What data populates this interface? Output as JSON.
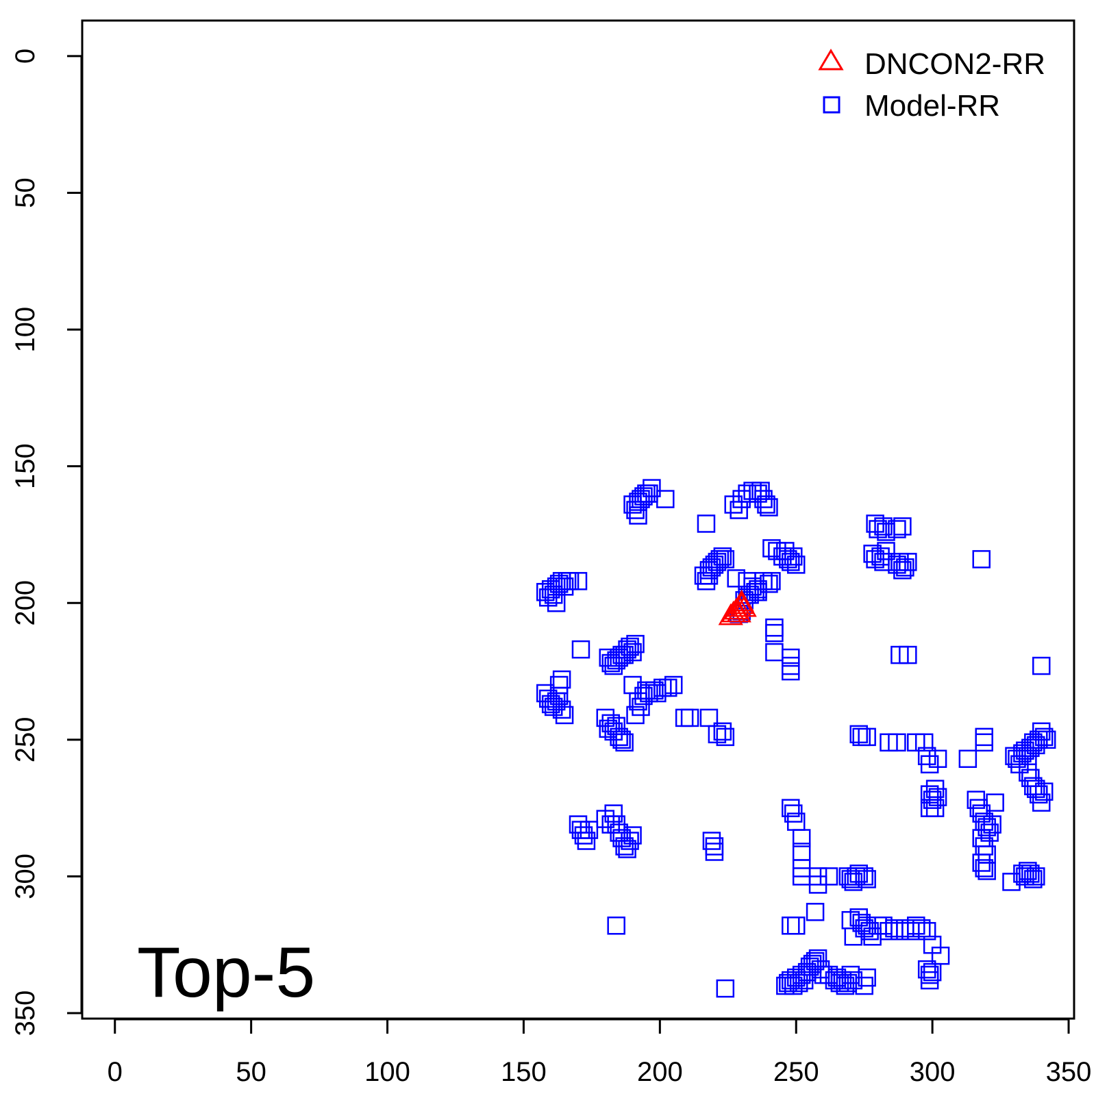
{
  "chart_data": {
    "type": "scatter",
    "title": "",
    "xlabel": "",
    "ylabel": "",
    "xlim": [
      -12,
      352
    ],
    "ylim": [
      -13,
      352
    ],
    "y_inverted": true,
    "x_ticks": [
      0,
      50,
      100,
      150,
      200,
      250,
      300,
      350
    ],
    "y_ticks": [
      0,
      50,
      100,
      150,
      200,
      250,
      300,
      350
    ],
    "x_tick_labels": [
      "0",
      "50",
      "100",
      "150",
      "200",
      "250",
      "300",
      "350"
    ],
    "y_tick_labels": [
      "0",
      "50",
      "100",
      "150",
      "200",
      "250",
      "300",
      "350"
    ],
    "annotation": "Top-5",
    "legend_position": "top-right",
    "series": [
      {
        "name": "DNCON2-RR",
        "marker": "triangle",
        "color": "#ff0000",
        "points": [
          [
            226,
            205
          ],
          [
            227,
            204
          ],
          [
            228,
            203
          ],
          [
            229,
            202
          ],
          [
            230,
            201
          ],
          [
            230,
            200
          ],
          [
            231,
            202
          ],
          [
            229,
            204
          ]
        ]
      },
      {
        "name": "Model-RR",
        "marker": "square",
        "color": "#0000ff",
        "points": [
          [
            158,
            196
          ],
          [
            159,
            198
          ],
          [
            160,
            195
          ],
          [
            161,
            197
          ],
          [
            162,
            194
          ],
          [
            163,
            193
          ],
          [
            164,
            192
          ],
          [
            165,
            194
          ],
          [
            166,
            192
          ],
          [
            167,
            192
          ],
          [
            170,
            192
          ],
          [
            162,
            200
          ],
          [
            190,
            164
          ],
          [
            191,
            166
          ],
          [
            192,
            168
          ],
          [
            192,
            163
          ],
          [
            193,
            162
          ],
          [
            194,
            161
          ],
          [
            195,
            160
          ],
          [
            196,
            160
          ],
          [
            197,
            158
          ],
          [
            202,
            162
          ],
          [
            227,
            164
          ],
          [
            230,
            162
          ],
          [
            232,
            160
          ],
          [
            234,
            159
          ],
          [
            236,
            160
          ],
          [
            237,
            159
          ],
          [
            238,
            162
          ],
          [
            239,
            164
          ],
          [
            240,
            165
          ],
          [
            229,
            166
          ],
          [
            217,
            171
          ],
          [
            279,
            171
          ],
          [
            280,
            173
          ],
          [
            282,
            172
          ],
          [
            283,
            174
          ],
          [
            287,
            173
          ],
          [
            289,
            172
          ],
          [
            216,
            190
          ],
          [
            217,
            192
          ],
          [
            218,
            190
          ],
          [
            218,
            188
          ],
          [
            219,
            187
          ],
          [
            220,
            186
          ],
          [
            221,
            185
          ],
          [
            222,
            184
          ],
          [
            223,
            183
          ],
          [
            224,
            184
          ],
          [
            241,
            180
          ],
          [
            243,
            181
          ],
          [
            245,
            183
          ],
          [
            246,
            181
          ],
          [
            247,
            184
          ],
          [
            248,
            185
          ],
          [
            249,
            183
          ],
          [
            250,
            186
          ],
          [
            278,
            182
          ],
          [
            279,
            184
          ],
          [
            281,
            183
          ],
          [
            282,
            185
          ],
          [
            283,
            181
          ],
          [
            287,
            186
          ],
          [
            288,
            185
          ],
          [
            289,
            188
          ],
          [
            290,
            187
          ],
          [
            291,
            185
          ],
          [
            318,
            184
          ],
          [
            228,
            191
          ],
          [
            232,
            192
          ],
          [
            234,
            194
          ],
          [
            236,
            195
          ],
          [
            238,
            192
          ],
          [
            240,
            193
          ],
          [
            241,
            192
          ],
          [
            231,
            199
          ],
          [
            232,
            197
          ],
          [
            233,
            197
          ],
          [
            235,
            196
          ],
          [
            236,
            196
          ],
          [
            229,
            204
          ],
          [
            230,
            203
          ],
          [
            242,
            209
          ],
          [
            242,
            211
          ],
          [
            242,
            218
          ],
          [
            248,
            220
          ],
          [
            248,
            223
          ],
          [
            248,
            225
          ],
          [
            171,
            217
          ],
          [
            181,
            220
          ],
          [
            182,
            222
          ],
          [
            183,
            223
          ],
          [
            184,
            221
          ],
          [
            185,
            220
          ],
          [
            186,
            219
          ],
          [
            187,
            219
          ],
          [
            188,
            217
          ],
          [
            189,
            216
          ],
          [
            190,
            218
          ],
          [
            191,
            215
          ],
          [
            288,
            219
          ],
          [
            291,
            219
          ],
          [
            340,
            223
          ],
          [
            158,
            233
          ],
          [
            159,
            235
          ],
          [
            160,
            237
          ],
          [
            161,
            238
          ],
          [
            162,
            236
          ],
          [
            163,
            234
          ],
          [
            164,
            239
          ],
          [
            165,
            241
          ],
          [
            163,
            230
          ],
          [
            164,
            228
          ],
          [
            190,
            230
          ],
          [
            192,
            236
          ],
          [
            193,
            238
          ],
          [
            194,
            234
          ],
          [
            195,
            232
          ],
          [
            196,
            233
          ],
          [
            198,
            232
          ],
          [
            199,
            233
          ],
          [
            201,
            231
          ],
          [
            203,
            231
          ],
          [
            205,
            230
          ],
          [
            191,
            241
          ],
          [
            180,
            242
          ],
          [
            181,
            246
          ],
          [
            182,
            244
          ],
          [
            183,
            247
          ],
          [
            184,
            245
          ],
          [
            185,
            249
          ],
          [
            186,
            250
          ],
          [
            187,
            251
          ],
          [
            209,
            242
          ],
          [
            211,
            242
          ],
          [
            218,
            242
          ],
          [
            221,
            248
          ],
          [
            223,
            247
          ],
          [
            224,
            249
          ],
          [
            273,
            248
          ],
          [
            274,
            249
          ],
          [
            276,
            249
          ],
          [
            284,
            251
          ],
          [
            287,
            251
          ],
          [
            294,
            251
          ],
          [
            297,
            251
          ],
          [
            298,
            256
          ],
          [
            299,
            259
          ],
          [
            302,
            257
          ],
          [
            319,
            251
          ],
          [
            319,
            249
          ],
          [
            313,
            257
          ],
          [
            330,
            256
          ],
          [
            331,
            257
          ],
          [
            332,
            259
          ],
          [
            333,
            255
          ],
          [
            334,
            254
          ],
          [
            335,
            256
          ],
          [
            336,
            253
          ],
          [
            337,
            251
          ],
          [
            338,
            252
          ],
          [
            339,
            250
          ],
          [
            340,
            247
          ],
          [
            341,
            249
          ],
          [
            342,
            250
          ],
          [
            335,
            262
          ],
          [
            336,
            264
          ],
          [
            337,
            267
          ],
          [
            338,
            268
          ],
          [
            339,
            270
          ],
          [
            340,
            273
          ],
          [
            341,
            269
          ],
          [
            299,
            270
          ],
          [
            300,
            272
          ],
          [
            301,
            268
          ],
          [
            302,
            271
          ],
          [
            299,
            275
          ],
          [
            301,
            275
          ],
          [
            316,
            272
          ],
          [
            317,
            275
          ],
          [
            318,
            277
          ],
          [
            319,
            280
          ],
          [
            320,
            282
          ],
          [
            321,
            284
          ],
          [
            318,
            286
          ],
          [
            319,
            289
          ],
          [
            320,
            292
          ],
          [
            322,
            281
          ],
          [
            323,
            273
          ],
          [
            318,
            295
          ],
          [
            319,
            297
          ],
          [
            320,
            298
          ],
          [
            170,
            281
          ],
          [
            171,
            283
          ],
          [
            172,
            285
          ],
          [
            173,
            287
          ],
          [
            174,
            283
          ],
          [
            180,
            279
          ],
          [
            182,
            281
          ],
          [
            183,
            277
          ],
          [
            184,
            281
          ],
          [
            185,
            284
          ],
          [
            186,
            286
          ],
          [
            187,
            289
          ],
          [
            188,
            290
          ],
          [
            189,
            287
          ],
          [
            190,
            285
          ],
          [
            219,
            287
          ],
          [
            220,
            289
          ],
          [
            220,
            291
          ],
          [
            248,
            275
          ],
          [
            249,
            277
          ],
          [
            250,
            280
          ],
          [
            252,
            286
          ],
          [
            252,
            291
          ],
          [
            252,
            297
          ],
          [
            252,
            300
          ],
          [
            258,
            300
          ],
          [
            258,
            303
          ],
          [
            262,
            300
          ],
          [
            269,
            300
          ],
          [
            270,
            301
          ],
          [
            271,
            302
          ],
          [
            272,
            300
          ],
          [
            273,
            299
          ],
          [
            275,
            300
          ],
          [
            276,
            301
          ],
          [
            329,
            302
          ],
          [
            333,
            299
          ],
          [
            334,
            300
          ],
          [
            335,
            298
          ],
          [
            336,
            299
          ],
          [
            337,
            301
          ],
          [
            338,
            300
          ],
          [
            184,
            318
          ],
          [
            248,
            318
          ],
          [
            250,
            318
          ],
          [
            257,
            313
          ],
          [
            270,
            316
          ],
          [
            271,
            322
          ],
          [
            273,
            315
          ],
          [
            274,
            317
          ],
          [
            275,
            319
          ],
          [
            276,
            318
          ],
          [
            277,
            320
          ],
          [
            278,
            322
          ],
          [
            280,
            318
          ],
          [
            282,
            318
          ],
          [
            284,
            320
          ],
          [
            286,
            319
          ],
          [
            288,
            320
          ],
          [
            290,
            319
          ],
          [
            292,
            320
          ],
          [
            294,
            318
          ],
          [
            296,
            319
          ],
          [
            298,
            320
          ],
          [
            300,
            325
          ],
          [
            303,
            329
          ],
          [
            224,
            341
          ],
          [
            246,
            340
          ],
          [
            247,
            339
          ],
          [
            248,
            338
          ],
          [
            249,
            340
          ],
          [
            250,
            337
          ],
          [
            251,
            339
          ],
          [
            252,
            336
          ],
          [
            253,
            338
          ],
          [
            254,
            335
          ],
          [
            255,
            333
          ],
          [
            256,
            332
          ],
          [
            257,
            331
          ],
          [
            258,
            330
          ],
          [
            259,
            334
          ],
          [
            260,
            336
          ],
          [
            262,
            336
          ],
          [
            264,
            338
          ],
          [
            265,
            337
          ],
          [
            266,
            339
          ],
          [
            267,
            338
          ],
          [
            268,
            340
          ],
          [
            269,
            339
          ],
          [
            270,
            336
          ],
          [
            271,
            338
          ],
          [
            275,
            340
          ],
          [
            276,
            337
          ],
          [
            298,
            334
          ],
          [
            299,
            336
          ],
          [
            300,
            335
          ],
          [
            299,
            338
          ]
        ]
      }
    ]
  }
}
